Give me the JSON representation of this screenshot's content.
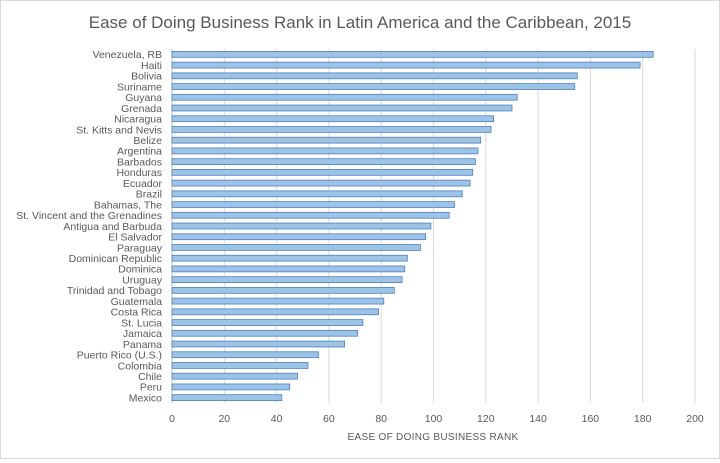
{
  "chart_data": {
    "type": "bar",
    "orientation": "horizontal",
    "title": "Ease of Doing Business Rank in Latin America and the Caribbean, 2015",
    "xlabel": "EASE OF DOING BUSINESS RANK",
    "ylabel": "",
    "xlim": [
      0,
      200
    ],
    "xticks": [
      0,
      20,
      40,
      60,
      80,
      100,
      120,
      140,
      160,
      180,
      200
    ],
    "grid": true,
    "legend": "none",
    "bar_color": "#9dc3e6",
    "bar_edge_color": "#4f81bd",
    "categories": [
      "Venezuela, RB",
      "Haiti",
      "Bolivia",
      "Suriname",
      "Guyana",
      "Grenada",
      "Nicaragua",
      "St. Kitts and Nevis",
      "Belize",
      "Argentina",
      "Barbados",
      "Honduras",
      "Ecuador",
      "Brazil",
      "Bahamas, The",
      "St. Vincent and the Grenadines",
      "Antigua and Barbuda",
      "El Salvador",
      "Paraguay",
      "Dominican Republic",
      "Dominica",
      "Uruguay",
      "Trinidad and Tobago",
      "Guatemala",
      "Costa Rica",
      "St. Lucia",
      "Jamaica",
      "Panama",
      "Puerto Rico (U.S.)",
      "Colombia",
      "Chile",
      "Peru",
      "Mexico"
    ],
    "values": [
      184,
      179,
      155,
      154,
      132,
      130,
      123,
      122,
      118,
      117,
      116,
      115,
      114,
      111,
      108,
      106,
      99,
      97,
      95,
      90,
      89,
      88,
      85,
      81,
      79,
      73,
      71,
      66,
      56,
      52,
      48,
      45,
      42
    ]
  }
}
